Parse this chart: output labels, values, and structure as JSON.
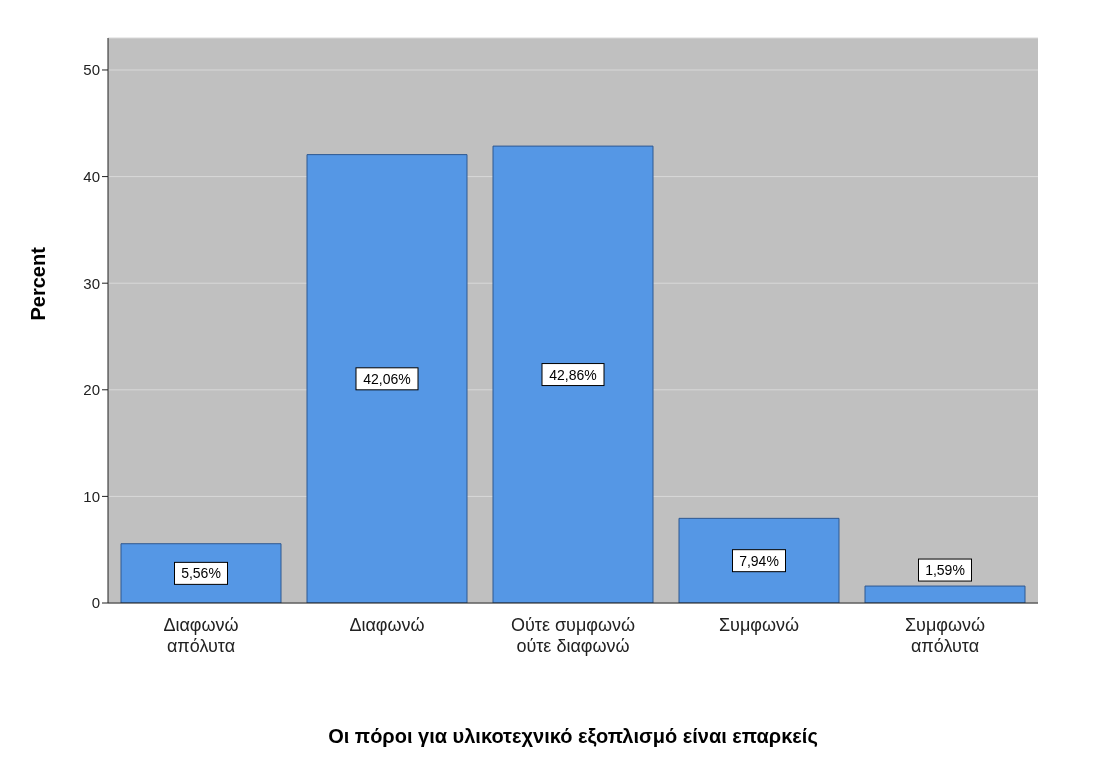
{
  "chart_data": {
    "type": "bar",
    "xlabel": "Οι πόροι για υλικοτεχνικό εξοπλισμό είναι επαρκείς",
    "ylabel": "Percent",
    "categories": [
      "Διαφωνώ απόλυτα",
      "Διαφωνώ",
      "Ούτε συμφωνώ ούτε διαφωνώ",
      "Συμφωνώ",
      "Συμφωνώ απόλυτα"
    ],
    "values": [
      5.56,
      42.06,
      42.86,
      7.94,
      1.59
    ],
    "value_labels": [
      "5,56%",
      "42,06%",
      "42,86%",
      "7,94%",
      "1,59%"
    ],
    "color": "#5597e5",
    "ylim": [
      0,
      53
    ],
    "yticks": [
      0,
      10,
      20,
      30,
      40,
      50
    ],
    "grid": "y"
  }
}
